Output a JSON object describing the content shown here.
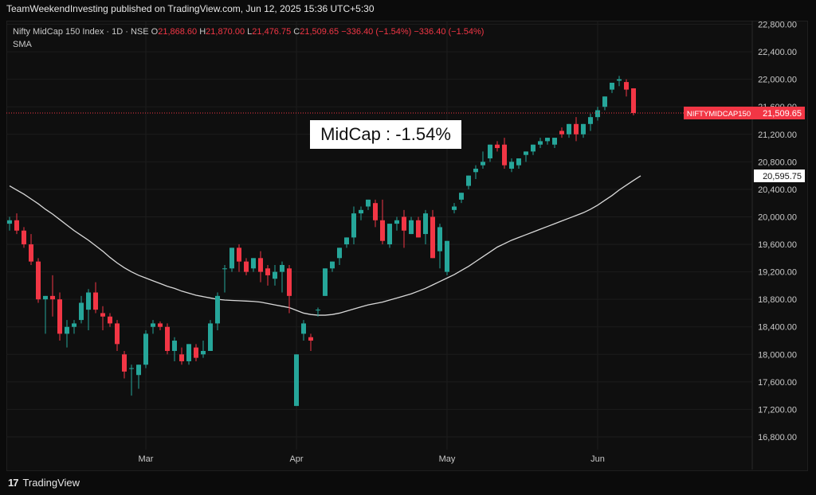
{
  "publisher_line": "TeamWeekendInvesting published on TradingView.com, Jun 12, 2025 15:36 UTC+5:30",
  "header": {
    "title": "Nifty MidCap 150 Index · 1D · NSE",
    "o_label": "O",
    "o_value": "21,868.60",
    "h_label": "H",
    "h_value": "21,870.00",
    "l_label": "L",
    "l_value": "21,476.75",
    "c_label": "C",
    "c_value": "21,509.65",
    "change": "−336.40 (−1.54%)",
    "change2": "−336.40 (−1.54%)",
    "sma_label": "SMA"
  },
  "annotation": "MidCap : -1.54%",
  "footer": {
    "logo": "17",
    "brand": "TradingView"
  },
  "colors": {
    "up": "#26a69a",
    "down": "#f23645",
    "sma": "#d9d9d9",
    "grid": "#1c1c1c",
    "axis_text": "#c9c9c9"
  },
  "chart_data": {
    "type": "candlestick",
    "y_ticks": [
      "22,800.00",
      "22,400.00",
      "22,000.00",
      "21,600.00",
      "21,200.00",
      "20,800.00",
      "20,400.00",
      "20,000.00",
      "19,600.00",
      "19,200.00",
      "18,800.00",
      "18,400.00",
      "18,000.00",
      "17,600.00",
      "17,200.00",
      "16,800.00"
    ],
    "y_tick_values": [
      22800,
      22400,
      22000,
      21600,
      21200,
      20800,
      20400,
      20000,
      19600,
      19200,
      18800,
      18400,
      18000,
      17600,
      17200,
      16800
    ],
    "ylim": [
      16600,
      23000
    ],
    "x_labels": [
      {
        "label": "Mar",
        "index": 19
      },
      {
        "label": "Apr",
        "index": 40
      },
      {
        "label": "May",
        "index": 61
      },
      {
        "label": "Jun",
        "index": 82
      }
    ],
    "last_price_label": "NIFTYMIDCAP150",
    "last_price": 21509.65,
    "last_price_text": "21,509.65",
    "sma_value": 20595.75,
    "sma_value_text": "20,595.75",
    "candles": [
      [
        19900,
        20000,
        19800,
        19950
      ],
      [
        19950,
        20050,
        19750,
        19800
      ],
      [
        19800,
        19850,
        19550,
        19600
      ],
      [
        19600,
        19750,
        19300,
        19350
      ],
      [
        19350,
        19400,
        18750,
        18800
      ],
      [
        18800,
        18850,
        18300,
        18850
      ],
      [
        18850,
        19150,
        18550,
        18800
      ],
      [
        18800,
        18900,
        18200,
        18300
      ],
      [
        18300,
        18500,
        18100,
        18400
      ],
      [
        18400,
        18500,
        18300,
        18450
      ],
      [
        18500,
        18850,
        18450,
        18750
      ],
      [
        18650,
        18950,
        18350,
        18900
      ],
      [
        18900,
        19050,
        18600,
        18650
      ],
      [
        18600,
        18700,
        18350,
        18550
      ],
      [
        18550,
        18600,
        18400,
        18450
      ],
      [
        18450,
        18500,
        18050,
        18150
      ],
      [
        18000,
        18050,
        17650,
        17750
      ],
      [
        17800,
        17850,
        17400,
        17800
      ],
      [
        17700,
        17850,
        17500,
        17850
      ],
      [
        17850,
        18350,
        17800,
        18300
      ],
      [
        18400,
        18500,
        18300,
        18450
      ],
      [
        18450,
        18480,
        18350,
        18400
      ],
      [
        18400,
        18450,
        18000,
        18050
      ],
      [
        18050,
        18250,
        17900,
        18200
      ],
      [
        18000,
        18100,
        17850,
        17900
      ],
      [
        17900,
        18150,
        17850,
        18150
      ],
      [
        18100,
        18150,
        17900,
        17950
      ],
      [
        18000,
        18200,
        17950,
        18050
      ],
      [
        18050,
        18500,
        18050,
        18450
      ],
      [
        18450,
        18900,
        18350,
        18850
      ],
      [
        19250,
        19300,
        18900,
        19250
      ],
      [
        19250,
        19550,
        19200,
        19550
      ],
      [
        19550,
        19600,
        19200,
        19350
      ],
      [
        19350,
        19400,
        19150,
        19200
      ],
      [
        19250,
        19400,
        19200,
        19400
      ],
      [
        19400,
        19500,
        19050,
        19200
      ],
      [
        19250,
        19300,
        19000,
        19150
      ],
      [
        19100,
        19300,
        19000,
        19200
      ],
      [
        19200,
        19350,
        18900,
        19300
      ],
      [
        19250,
        19300,
        18600,
        18850
      ],
      [
        17250,
        18000,
        17250,
        18000
      ],
      [
        18300,
        18500,
        18200,
        18450
      ],
      [
        18250,
        18300,
        18050,
        18200
      ],
      [
        18650,
        18680,
        18550,
        18650
      ],
      [
        18850,
        19250,
        18850,
        19250
      ],
      [
        19250,
        19350,
        19200,
        19350
      ],
      [
        19400,
        19550,
        19300,
        19550
      ],
      [
        19600,
        19700,
        19550,
        19700
      ],
      [
        19700,
        20150,
        19600,
        20050
      ],
      [
        20050,
        20150,
        19950,
        20100
      ],
      [
        20150,
        20250,
        20100,
        20250
      ],
      [
        20200,
        20250,
        19850,
        19950
      ],
      [
        19950,
        20250,
        19600,
        19650
      ],
      [
        19600,
        19900,
        19550,
        19900
      ],
      [
        19900,
        20000,
        19800,
        19950
      ],
      [
        20000,
        20100,
        19550,
        19800
      ],
      [
        19750,
        20000,
        19750,
        19950
      ],
      [
        19950,
        20000,
        19700,
        19700
      ],
      [
        19750,
        20100,
        19600,
        20050
      ],
      [
        20000,
        20100,
        19400,
        19400
      ],
      [
        19500,
        19900,
        19250,
        19850
      ],
      [
        19200,
        19650,
        19150,
        19650
      ],
      [
        20100,
        20200,
        20050,
        20150
      ],
      [
        20250,
        20350,
        20200,
        20350
      ],
      [
        20450,
        20600,
        20400,
        20600
      ],
      [
        20650,
        20750,
        20550,
        20700
      ],
      [
        20750,
        20950,
        20700,
        20800
      ],
      [
        20850,
        21050,
        20800,
        21050
      ],
      [
        21050,
        21100,
        20950,
        21000
      ],
      [
        21050,
        21150,
        20700,
        20750
      ],
      [
        20700,
        20850,
        20650,
        20800
      ],
      [
        20750,
        20850,
        20700,
        20850
      ],
      [
        20900,
        20950,
        20800,
        20950
      ],
      [
        20950,
        21050,
        20900,
        21050
      ],
      [
        21050,
        21150,
        21000,
        21100
      ],
      [
        21100,
        21150,
        21050,
        21150
      ],
      [
        21050,
        21150,
        21000,
        21150
      ],
      [
        21250,
        21300,
        21150,
        21200
      ],
      [
        21200,
        21350,
        21150,
        21350
      ],
      [
        21350,
        21450,
        21100,
        21200
      ],
      [
        21200,
        21350,
        21150,
        21350
      ],
      [
        21350,
        21500,
        21250,
        21450
      ],
      [
        21450,
        21600,
        21400,
        21550
      ],
      [
        21600,
        21750,
        21550,
        21750
      ],
      [
        21850,
        21950,
        21800,
        21950
      ],
      [
        21980,
        22050,
        21900,
        22000
      ],
      [
        21960,
        22000,
        21750,
        21850
      ],
      [
        21868.6,
        21870,
        21476.75,
        21509.65
      ]
    ],
    "sma": [
      20450,
      20390,
      20330,
      20260,
      20190,
      20110,
      20040,
      19960,
      19880,
      19800,
      19730,
      19660,
      19580,
      19500,
      19410,
      19330,
      19260,
      19200,
      19150,
      19110,
      19070,
      19030,
      18990,
      18960,
      18920,
      18890,
      18860,
      18840,
      18820,
      18800,
      18790,
      18785,
      18780,
      18775,
      18770,
      18760,
      18740,
      18720,
      18700,
      18680,
      18640,
      18600,
      18580,
      18570,
      18570,
      18580,
      18600,
      18630,
      18660,
      18690,
      18720,
      18740,
      18760,
      18790,
      18820,
      18850,
      18880,
      18920,
      18960,
      19010,
      19060,
      19110,
      19160,
      19220,
      19280,
      19350,
      19420,
      19490,
      19560,
      19610,
      19660,
      19700,
      19740,
      19780,
      19820,
      19860,
      19900,
      19940,
      19980,
      20020,
      20060,
      20110,
      20170,
      20240,
      20310,
      20390,
      20460,
      20530,
      20595.75
    ]
  }
}
